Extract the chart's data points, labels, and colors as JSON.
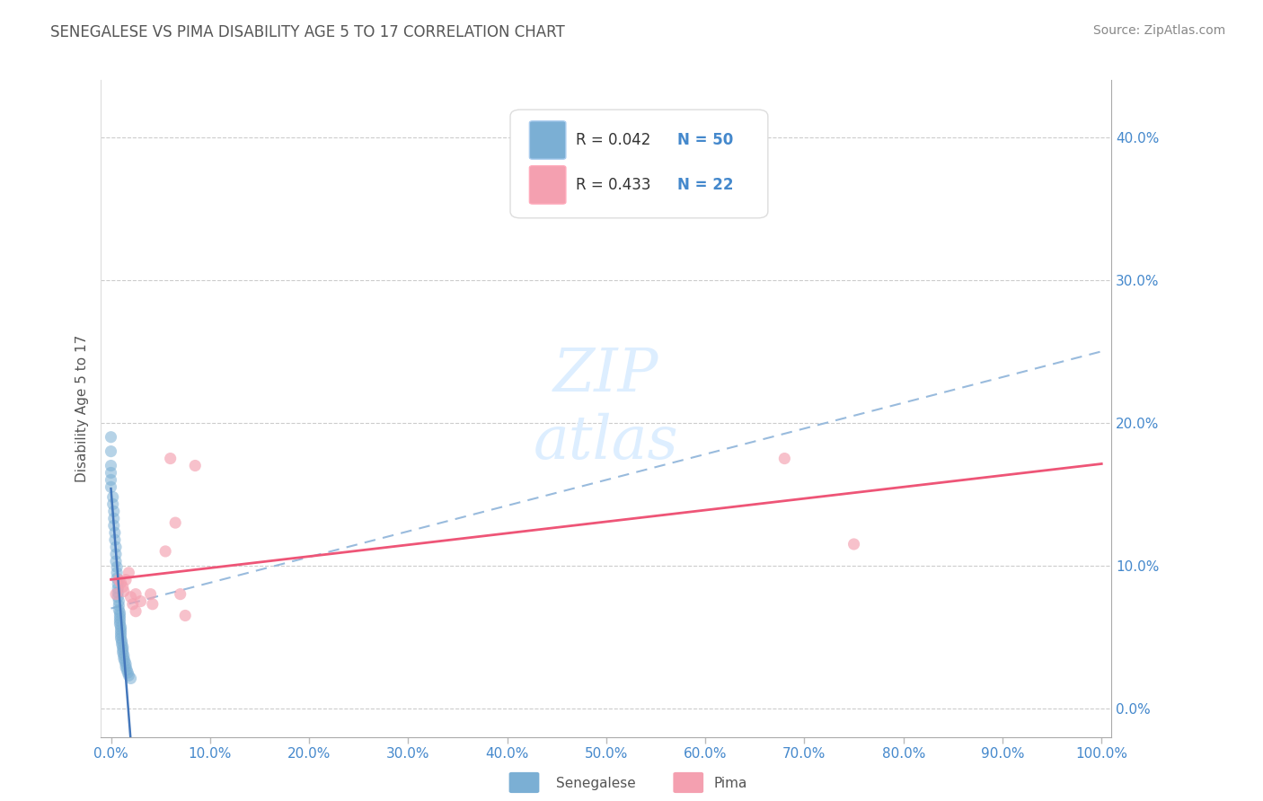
{
  "title": "SENEGALESE VS PIMA DISABILITY AGE 5 TO 17 CORRELATION CHART",
  "source_text": "Source: ZipAtlas.com",
  "ylabel": "Disability Age 5 to 17",
  "legend_r": [
    "R = 0.042",
    "R = 0.433"
  ],
  "legend_n": [
    "N = 50",
    "N = 22"
  ],
  "legend_label_blue": "Senegalese",
  "legend_label_pink": "Pima",
  "blue_color": "#7BAFD4",
  "pink_color": "#F4A0B0",
  "blue_line_color": "#4477BB",
  "pink_line_color": "#EE5577",
  "dashed_line_color": "#99BBDD",
  "title_color": "#555555",
  "source_color": "#888888",
  "axis_label_color": "#555555",
  "tick_color": "#4488CC",
  "legend_text_color_r": "#333333",
  "legend_text_color_n": "#4488CC",
  "grid_color": "#CCCCCC",
  "watermark_color": "#DDEEFF",
  "blue_x": [
    0.0,
    0.0,
    0.0,
    0.0,
    0.0,
    0.0,
    0.002,
    0.002,
    0.003,
    0.003,
    0.003,
    0.004,
    0.004,
    0.005,
    0.005,
    0.005,
    0.006,
    0.006,
    0.006,
    0.007,
    0.007,
    0.007,
    0.007,
    0.008,
    0.008,
    0.008,
    0.009,
    0.009,
    0.009,
    0.009,
    0.009,
    0.01,
    0.01,
    0.01,
    0.01,
    0.01,
    0.011,
    0.011,
    0.012,
    0.012,
    0.012,
    0.013,
    0.013,
    0.014,
    0.015,
    0.015,
    0.016,
    0.017,
    0.018,
    0.02
  ],
  "blue_y": [
    0.19,
    0.18,
    0.17,
    0.165,
    0.16,
    0.155,
    0.148,
    0.143,
    0.138,
    0.133,
    0.128,
    0.123,
    0.118,
    0.113,
    0.108,
    0.103,
    0.099,
    0.095,
    0.091,
    0.087,
    0.084,
    0.081,
    0.078,
    0.075,
    0.072,
    0.069,
    0.067,
    0.065,
    0.063,
    0.061,
    0.059,
    0.057,
    0.055,
    0.053,
    0.051,
    0.049,
    0.047,
    0.045,
    0.043,
    0.041,
    0.039,
    0.037,
    0.035,
    0.033,
    0.031,
    0.029,
    0.027,
    0.025,
    0.023,
    0.021
  ],
  "pink_x": [
    0.005,
    0.008,
    0.01,
    0.012,
    0.013,
    0.015,
    0.018,
    0.02,
    0.022,
    0.025,
    0.025,
    0.03,
    0.04,
    0.042,
    0.055,
    0.06,
    0.065,
    0.07,
    0.075,
    0.085,
    0.68,
    0.75
  ],
  "pink_y": [
    0.08,
    0.09,
    0.088,
    0.085,
    0.082,
    0.09,
    0.095,
    0.078,
    0.073,
    0.08,
    0.068,
    0.075,
    0.08,
    0.073,
    0.11,
    0.175,
    0.13,
    0.08,
    0.065,
    0.17,
    0.175,
    0.115
  ],
  "xlim": [
    -0.01,
    1.01
  ],
  "ylim": [
    -0.02,
    0.44
  ],
  "xticks": [
    0.0,
    0.1,
    0.2,
    0.3,
    0.4,
    0.5,
    0.6,
    0.7,
    0.8,
    0.9,
    1.0
  ],
  "yticks": [
    0.0,
    0.1,
    0.2,
    0.3,
    0.4
  ],
  "ytick_labels_right": [
    "0.0%",
    "10.0%",
    "20.0%",
    "30.0%",
    "40.0%"
  ],
  "xtick_labels": [
    "0.0%",
    "10.0%",
    "20.0%",
    "30.0%",
    "40.0%",
    "50.0%",
    "60.0%",
    "70.0%",
    "80.0%",
    "90.0%",
    "100.0%"
  ],
  "figsize": [
    14.06,
    8.92
  ],
  "dpi": 100
}
